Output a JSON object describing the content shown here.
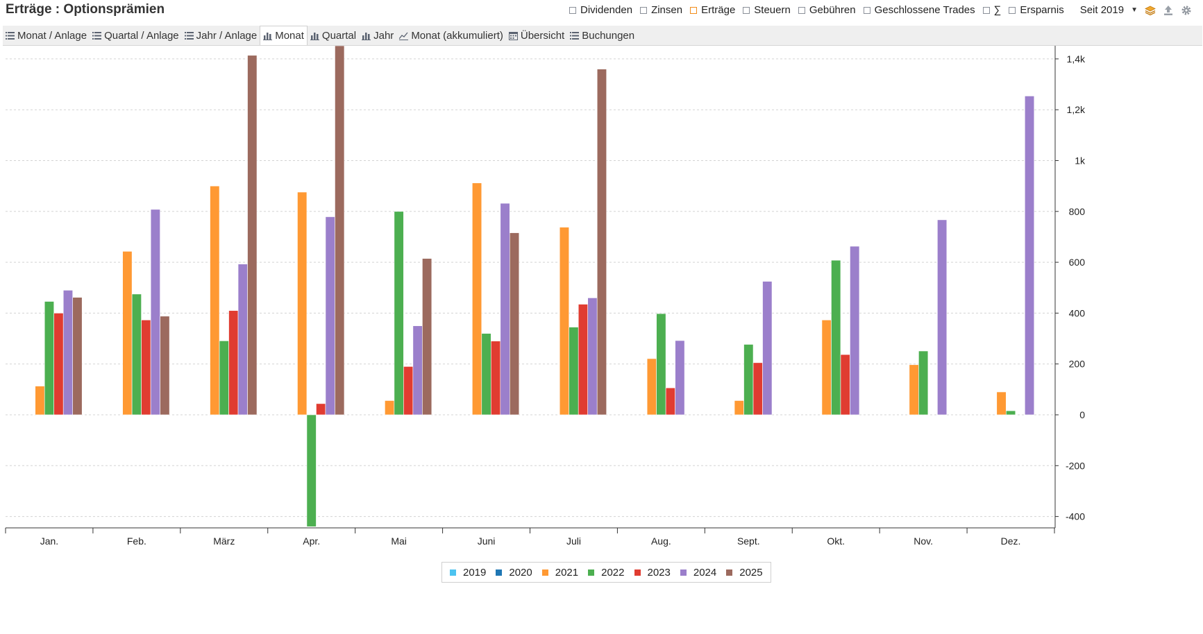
{
  "header": {
    "title": "Erträge : Optionsprämien",
    "filters": [
      {
        "label": "Dividenden",
        "checked": false
      },
      {
        "label": "Zinsen",
        "checked": false
      },
      {
        "label": "Erträge",
        "checked": true
      },
      {
        "label": "Steuern",
        "checked": false
      },
      {
        "label": "Gebühren",
        "checked": false
      },
      {
        "label": "Geschlossene Trades",
        "checked": false
      },
      {
        "label": "∑",
        "checked": false
      },
      {
        "label": "Ersparnis",
        "checked": false
      }
    ],
    "period": "Seit 2019",
    "icons": [
      "layers-icon",
      "export-icon",
      "settings-icon"
    ]
  },
  "toolbar": {
    "tabs": [
      {
        "label": "Monat / Anlage",
        "icon": "list-icon",
        "active": false
      },
      {
        "label": "Quartal / Anlage",
        "icon": "list-icon",
        "active": false
      },
      {
        "label": "Jahr / Anlage",
        "icon": "list-icon",
        "active": false
      },
      {
        "label": "Monat",
        "icon": "bar-chart-icon",
        "active": true
      },
      {
        "label": "Quartal",
        "icon": "bar-chart-icon",
        "active": false
      },
      {
        "label": "Jahr",
        "icon": "bar-chart-icon",
        "active": false
      },
      {
        "label": "Monat (akkumuliert)",
        "icon": "line-chart-icon",
        "active": false
      },
      {
        "label": "Übersicht",
        "icon": "calendar-icon",
        "active": false
      },
      {
        "label": "Buchungen",
        "icon": "list-icon",
        "active": false
      }
    ]
  },
  "chart_data": {
    "type": "bar",
    "categories": [
      "Jan.",
      "Feb.",
      "März",
      "Apr.",
      "Mai",
      "Juni",
      "Juli",
      "Aug.",
      "Sept.",
      "Okt.",
      "Nov.",
      "Dez."
    ],
    "series": [
      {
        "name": "2019",
        "color": "#4cc3f0",
        "values": [
          null,
          null,
          null,
          null,
          null,
          null,
          null,
          null,
          null,
          null,
          null,
          null
        ]
      },
      {
        "name": "2020",
        "color": "#1f77b4",
        "values": [
          null,
          null,
          null,
          null,
          null,
          null,
          null,
          null,
          null,
          null,
          null,
          null
        ]
      },
      {
        "name": "2021",
        "color": "#ff9933",
        "values": [
          113,
          643,
          900,
          876,
          56,
          912,
          738,
          221,
          56,
          373,
          197,
          90
        ]
      },
      {
        "name": "2022",
        "color": "#4caf50",
        "values": [
          446,
          475,
          291,
          -440,
          800,
          320,
          345,
          398,
          277,
          608,
          251,
          16
        ]
      },
      {
        "name": "2023",
        "color": "#e03c31",
        "values": [
          400,
          373,
          410,
          44,
          190,
          290,
          435,
          106,
          205,
          237,
          null,
          null
        ]
      },
      {
        "name": "2024",
        "color": "#9b7fcb",
        "values": [
          490,
          808,
          593,
          779,
          350,
          832,
          460,
          292,
          525,
          663,
          767,
          1254
        ]
      },
      {
        "name": "2025",
        "color": "#9c6a5e",
        "values": [
          462,
          388,
          1414,
          1459,
          615,
          716,
          1360,
          null,
          null,
          null,
          null,
          null
        ]
      }
    ],
    "y_ticks": [
      {
        "value": -400,
        "label": "-400"
      },
      {
        "value": -200,
        "label": "-200"
      },
      {
        "value": 0,
        "label": "0"
      },
      {
        "value": 200,
        "label": "200"
      },
      {
        "value": 400,
        "label": "400"
      },
      {
        "value": 600,
        "label": "600"
      },
      {
        "value": 800,
        "label": "800"
      },
      {
        "value": 1000,
        "label": "1k"
      },
      {
        "value": 1200,
        "label": "1,2k"
      },
      {
        "value": 1400,
        "label": "1,4k"
      }
    ],
    "ylim": [
      -445,
      1460
    ],
    "grid": true,
    "legend_position": "bottom"
  }
}
